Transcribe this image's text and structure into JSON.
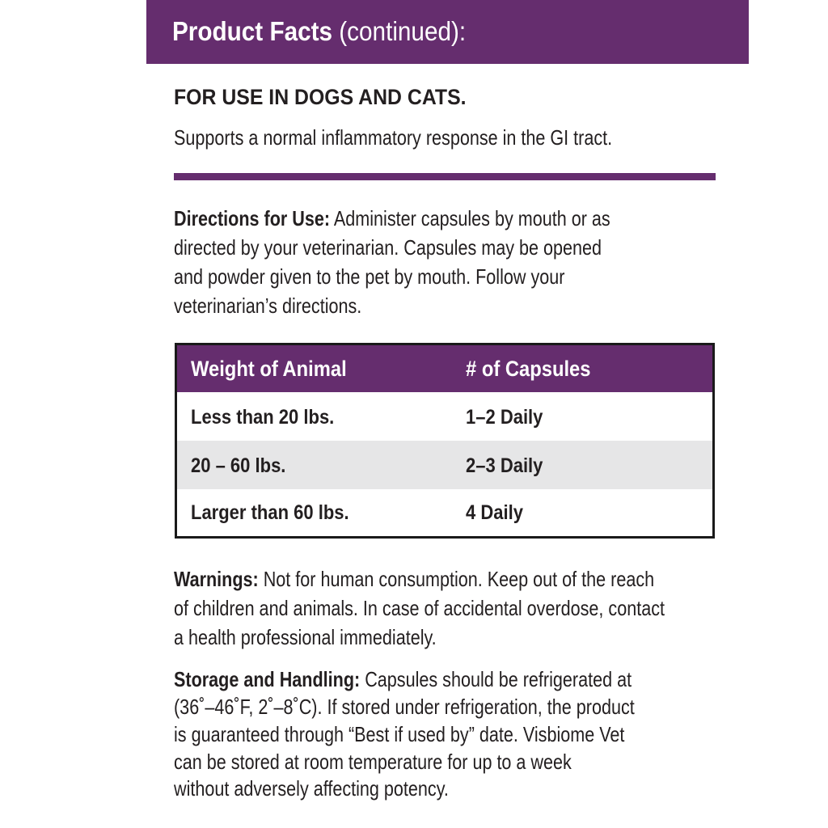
{
  "header": {
    "title_bold": "Product Facts",
    "title_rest": " (continued):",
    "color": "#652d6e"
  },
  "intro": {
    "heading": "FOR USE IN DOGS AND CATS.",
    "text": "Supports a normal inflammatory response in the GI tract."
  },
  "directions": {
    "label": "Directions for Use:",
    "lines": [
      " Administer capsules by mouth or as",
      "directed by your veterinarian. Capsules may be opened",
      "and powder given to the pet by mouth. Follow your",
      "veterinarian’s directions."
    ]
  },
  "dosage_table": {
    "headers": [
      "Weight of Animal",
      "# of Capsules"
    ],
    "rows": [
      [
        "Less than 20 lbs.",
        "1–2 Daily"
      ],
      [
        "20 – 60 lbs.",
        "2–3 Daily"
      ],
      [
        "Larger than 60 lbs.",
        "4 Daily"
      ]
    ]
  },
  "warnings": {
    "label": "Warnings:",
    "lines": [
      " Not for human consumption. Keep out of the reach",
      "of children and animals. In case of accidental overdose, contact",
      "a health professional immediately."
    ]
  },
  "storage": {
    "label": "Storage and Handling:",
    "lines": [
      " Capsules should be refrigerated at",
      "(36˚–46˚F, 2˚–8˚C). If stored under refrigeration, the product",
      "is guaranteed through “Best if used by” date. Visbiome Vet",
      "can be stored at room temperature for up to a week",
      "without adversely affecting potency."
    ]
  }
}
